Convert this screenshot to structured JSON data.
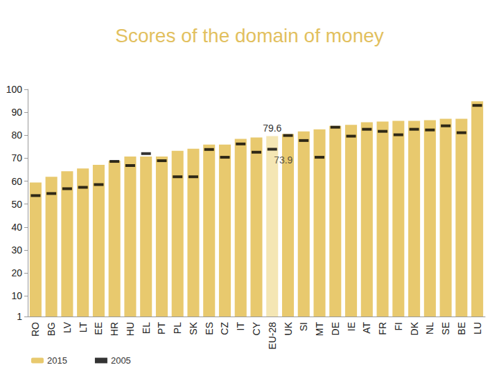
{
  "chart_data": {
    "type": "bar",
    "title": "Scores of the domain of money",
    "categories": [
      "RO",
      "BG",
      "LV",
      "LT",
      "EE",
      "HR",
      "HU",
      "EL",
      "PT",
      "PL",
      "SK",
      "ES",
      "CZ",
      "IT",
      "CY",
      "EU-28",
      "UK",
      "SI",
      "MT",
      "DE",
      "IE",
      "AT",
      "FR",
      "FI",
      "DK",
      "NL",
      "SE",
      "BE",
      "LU"
    ],
    "series": [
      {
        "name": "2015",
        "type": "bar",
        "colors": [
          "#e8c96e",
          "#e8c96e",
          "#e8c96e",
          "#e8c96e",
          "#e8c96e",
          "#e8c96e",
          "#e8c96e",
          "#e8c96e",
          "#e8c96e",
          "#e8c96e",
          "#e8c96e",
          "#e8c96e",
          "#e8c96e",
          "#e8c96e",
          "#e8c96e",
          "#f4e6b4",
          "#e8c96e",
          "#e8c96e",
          "#e8c96e",
          "#e8c96e",
          "#e8c96e",
          "#e8c96e",
          "#e8c96e",
          "#e8c96e",
          "#e8c96e",
          "#e8c96e",
          "#e8c96e",
          "#e8c96e",
          "#e8c96e"
        ],
        "color": "#e8c96e",
        "values": [
          59.4,
          61.9,
          64.3,
          65.5,
          67.1,
          68.9,
          70.7,
          70.7,
          70.7,
          73.2,
          74.1,
          75.9,
          75.9,
          78.4,
          79.0,
          79.6,
          80.5,
          81.7,
          82.6,
          84.1,
          84.5,
          85.7,
          86.0,
          86.3,
          86.3,
          86.6,
          87.2,
          87.2,
          94.8
        ]
      },
      {
        "name": "2005",
        "type": "scatter",
        "marker": "dash",
        "color": "#000000",
        "values": [
          53.7,
          54.6,
          56.7,
          57.3,
          58.5,
          68.6,
          66.8,
          72.0,
          68.9,
          61.9,
          61.9,
          73.8,
          70.4,
          76.2,
          72.6,
          73.9,
          79.9,
          77.7,
          70.4,
          83.5,
          79.6,
          82.6,
          81.7,
          80.2,
          82.6,
          82.3,
          84.1,
          81.1,
          93.0
        ]
      }
    ],
    "annotations": [
      {
        "text": "79.6",
        "category": "EU-28",
        "series": "2015"
      },
      {
        "text": "73.9",
        "category": "EU-28",
        "series": "2005"
      }
    ],
    "ylim": [
      1,
      100
    ],
    "yticks": [
      1,
      10,
      20,
      30,
      40,
      50,
      60,
      70,
      80,
      90,
      100
    ],
    "grid": false,
    "legend": "bottom-left"
  }
}
